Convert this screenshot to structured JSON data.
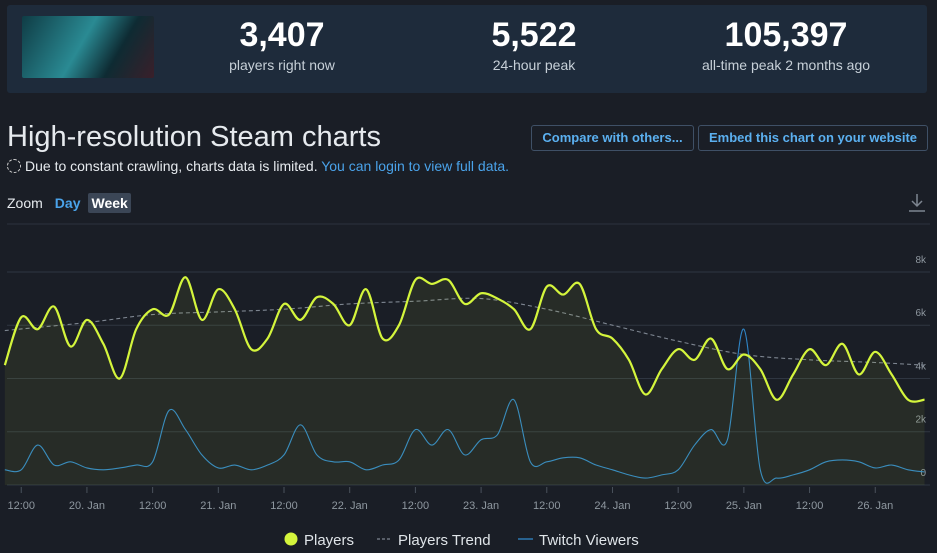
{
  "header": {
    "stats": [
      {
        "value": "3,407",
        "label": "players right now"
      },
      {
        "value": "5,522",
        "label": "24-hour peak"
      },
      {
        "value": "105,397",
        "label": "all-time peak 2 months ago"
      }
    ]
  },
  "page": {
    "title": "High-resolution Steam charts",
    "buttons": [
      "Compare with others...",
      "Embed this chart on your website"
    ],
    "notice": "Due to constant crawling, charts data is limited.",
    "notice_link": "You can login to view full data.",
    "zoom_label": "Zoom",
    "zoom_options": [
      "Day",
      "Week"
    ]
  },
  "chart_data": {
    "type": "line",
    "x": [
      9,
      12,
      15,
      18,
      21,
      24,
      27,
      30,
      33,
      36,
      39,
      42,
      45,
      48,
      51,
      54,
      57,
      60,
      63,
      66,
      69,
      72,
      75,
      78,
      81,
      84,
      87,
      90,
      93,
      96,
      99,
      102,
      105,
      108,
      111,
      114,
      117,
      120,
      123,
      126,
      129,
      132,
      135,
      138,
      141,
      144,
      147,
      150,
      153,
      156,
      159,
      162,
      165,
      168,
      171,
      174,
      177
    ],
    "series": [
      {
        "name": "Players",
        "color": "#d4f53c",
        "values": [
          4500,
          6300,
          5850,
          6700,
          5200,
          6200,
          5300,
          4000,
          5850,
          6600,
          6400,
          7800,
          6200,
          7350,
          6600,
          5100,
          5500,
          6800,
          6200,
          7050,
          6800,
          6000,
          7350,
          5500,
          6000,
          7700,
          7550,
          7700,
          6800,
          7200,
          7000,
          6600,
          5850,
          7450,
          7150,
          7550,
          5850,
          5500,
          4700,
          3400,
          4350,
          5100,
          4700,
          5500,
          4350,
          4900,
          4350,
          3200,
          4150,
          5100,
          4500,
          5300,
          4150,
          5000,
          4150,
          3200,
          3200
        ]
      },
      {
        "name": "Players Trend",
        "color": "#7d8590",
        "x": [
          9,
          24,
          36,
          48,
          60,
          72,
          84,
          96,
          108,
          120,
          132,
          144,
          156,
          168,
          177
        ],
        "values": [
          5800,
          6100,
          6400,
          6500,
          6600,
          6800,
          6900,
          7000,
          6600,
          6000,
          5400,
          4900,
          4700,
          4600,
          4500
        ]
      },
      {
        "name": "Twitch Viewers",
        "color": "#2f86c8",
        "values": [
          570,
          570,
          1500,
          750,
          870,
          640,
          570,
          640,
          750,
          870,
          2800,
          2080,
          1130,
          640,
          750,
          570,
          750,
          1130,
          2260,
          1130,
          870,
          870,
          570,
          750,
          940,
          2080,
          1500,
          2080,
          1130,
          1700,
          1890,
          3200,
          870,
          870,
          1020,
          1020,
          750,
          570,
          380,
          260,
          380,
          570,
          1500,
          2080,
          1700,
          5850,
          570,
          260,
          380,
          570,
          870,
          940,
          870,
          640,
          750,
          570,
          490
        ]
      }
    ],
    "xlim": [
      9.4,
      178
    ],
    "xticks": [
      {
        "value": 12,
        "label": "12:00"
      },
      {
        "value": 24,
        "label": "20. Jan"
      },
      {
        "value": 36,
        "label": "12:00"
      },
      {
        "value": 48,
        "label": "21. Jan"
      },
      {
        "value": 60,
        "label": "12:00"
      },
      {
        "value": 72,
        "label": "22. Jan"
      },
      {
        "value": 84,
        "label": "12:00"
      },
      {
        "value": 96,
        "label": "23. Jan"
      },
      {
        "value": 108,
        "label": "12:00"
      },
      {
        "value": 120,
        "label": "24. Jan"
      },
      {
        "value": 132,
        "label": "12:00"
      },
      {
        "value": 144,
        "label": "25. Jan"
      },
      {
        "value": 156,
        "label": "12:00"
      },
      {
        "value": 168,
        "label": "26. Jan"
      }
    ],
    "ylim": [
      0,
      9800
    ],
    "yticks": [
      0,
      {
        "value": 2000,
        "label": "2k"
      },
      {
        "value": 4000,
        "label": "4k"
      },
      {
        "value": 6000,
        "label": "6k"
      },
      {
        "value": 8000,
        "label": "8k"
      }
    ],
    "grid": true
  }
}
